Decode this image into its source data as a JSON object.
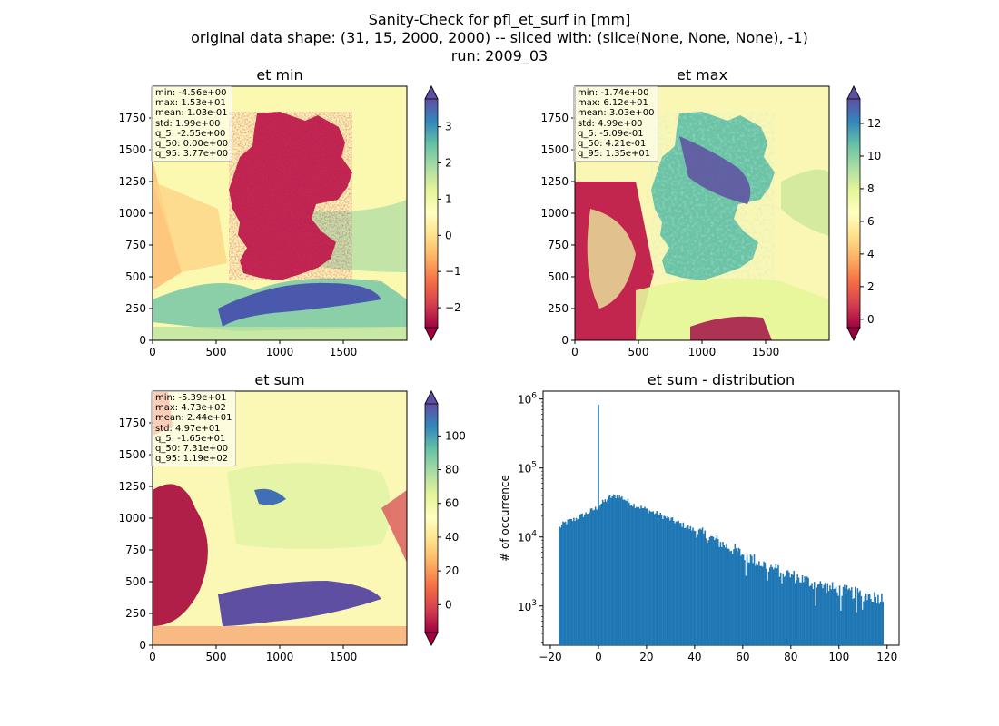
{
  "title_lines": [
    "Sanity-Check for pfl_et_surf in [mm]",
    "original data shape: (31, 15, 2000, 2000) -- sliced with: (slice(None, None, None), -1)",
    "run: 2009_03"
  ],
  "chart_data": [
    {
      "type": "heatmap",
      "title": "et min",
      "xlim": [
        0,
        2000
      ],
      "ylim": [
        0,
        2000
      ],
      "xticks": [
        0,
        500,
        1000,
        1500
      ],
      "yticks": [
        0,
        250,
        500,
        750,
        1000,
        1250,
        1500,
        1750
      ],
      "colormap": "Spectral",
      "colorbar": {
        "range": [
          -2.55,
          3.77
        ],
        "ticks": [
          -2,
          -1,
          0,
          1,
          2,
          3
        ],
        "tick_labels": [
          "−2",
          "−1",
          "0",
          "1",
          "2",
          "3"
        ],
        "extend": "both"
      },
      "stats": [
        "min: -4.56e+00",
        "max: 1.53e+01",
        "mean: 1.03e-01",
        "std: 1.99e+00",
        "q_5: -2.55e+00",
        "q_50: 0.00e+00",
        "q_95: 3.77e+00"
      ]
    },
    {
      "type": "heatmap",
      "title": "et max",
      "xlim": [
        0,
        2000
      ],
      "ylim": [
        0,
        2000
      ],
      "xticks": [
        0,
        500,
        1000,
        1500
      ],
      "yticks": [
        0,
        250,
        500,
        750,
        1000,
        1250,
        1500,
        1750
      ],
      "colormap": "Spectral",
      "colorbar": {
        "range": [
          -0.509,
          13.5
        ],
        "ticks": [
          0,
          2,
          4,
          6,
          8,
          10,
          12
        ],
        "tick_labels": [
          "0",
          "2",
          "4",
          "6",
          "8",
          "10",
          "12"
        ],
        "extend": "both"
      },
      "stats": [
        "min: -1.74e+00",
        "max: 6.12e+01",
        "mean: 3.03e+00",
        "std: 4.99e+00",
        "q_5: -5.09e-01",
        "q_50: 4.21e-01",
        "q_95: 1.35e+01"
      ]
    },
    {
      "type": "heatmap",
      "title": "et sum",
      "xlim": [
        0,
        2000
      ],
      "ylim": [
        0,
        2000
      ],
      "xticks": [
        0,
        500,
        1000,
        1500
      ],
      "yticks": [
        0,
        250,
        500,
        750,
        1000,
        1250,
        1500,
        1750
      ],
      "colormap": "Spectral",
      "colorbar": {
        "range": [
          -16.5,
          119
        ],
        "ticks": [
          0,
          20,
          40,
          60,
          80,
          100
        ],
        "tick_labels": [
          "0",
          "20",
          "40",
          "60",
          "80",
          "100"
        ],
        "extend": "both"
      },
      "stats": [
        "min: -5.39e+01",
        "max: 4.73e+02",
        "mean: 2.44e+01",
        "std: 4.97e+01",
        "q_5: -1.65e+01",
        "q_50: 7.31e+00",
        "q_95: 1.19e+02"
      ]
    },
    {
      "type": "bar",
      "title": "et sum - distribution",
      "xlabel": "",
      "ylabel": "# of occurrence",
      "xlim": [
        -23,
        125
      ],
      "ylim": [
        270,
        1300000
      ],
      "yscale": "log",
      "xticks": [
        -20,
        0,
        20,
        40,
        60,
        80,
        100,
        120
      ],
      "xtick_labels": [
        "−20",
        "0",
        "20",
        "40",
        "60",
        "80",
        "100",
        "120"
      ],
      "yticks": [
        1000,
        10000,
        100000,
        1000000
      ],
      "ytick_labels": [
        "10",
        "10",
        "10",
        "10"
      ],
      "ytick_exponents": [
        "3",
        "4",
        "5",
        "6"
      ],
      "color": "#1f77b4",
      "spike": {
        "x": 0,
        "count": 830000
      },
      "bin_width": 0.5,
      "control_points": [
        [
          -16.5,
          13500
        ],
        [
          -14,
          16000
        ],
        [
          -10,
          18000
        ],
        [
          -5,
          22000
        ],
        [
          -1,
          26000
        ],
        [
          2,
          32000
        ],
        [
          5,
          38000
        ],
        [
          8,
          40000
        ],
        [
          10,
          37000
        ],
        [
          14,
          30000
        ],
        [
          20,
          25000
        ],
        [
          30,
          18000
        ],
        [
          40,
          12500
        ],
        [
          50,
          8500
        ],
        [
          60,
          5600
        ],
        [
          70,
          3800
        ],
        [
          80,
          2800
        ],
        [
          90,
          2100
        ],
        [
          100,
          1700
        ],
        [
          110,
          1450
        ],
        [
          118.5,
          1300
        ]
      ]
    }
  ]
}
